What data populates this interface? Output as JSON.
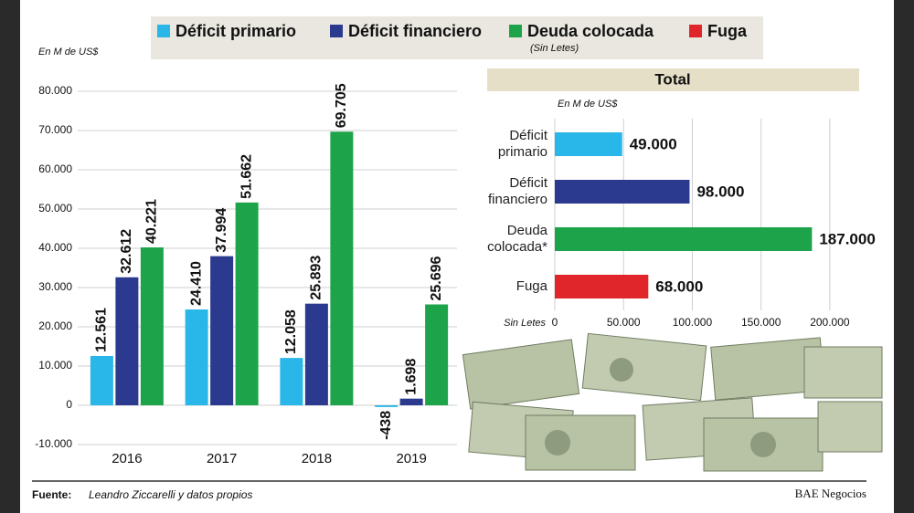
{
  "chart_data": [
    {
      "type": "bar",
      "ylabel": "En M de US$",
      "categories": [
        "2016",
        "2017",
        "2018",
        "2019"
      ],
      "series": [
        {
          "name": "Déficit primario",
          "color": "#29b6e8",
          "values": [
            12561,
            24410,
            12058,
            -438
          ],
          "value_labels": [
            "12.561",
            "24.410",
            "12.058",
            "-438"
          ]
        },
        {
          "name": "Déficit financiero",
          "color": "#2b3a8f",
          "values": [
            32612,
            37994,
            25893,
            1698
          ],
          "value_labels": [
            "32.612",
            "37.994",
            "25.893",
            "1.698"
          ]
        },
        {
          "name": "Deuda colocada",
          "color": "#1da34a",
          "values": [
            40221,
            51662,
            69705,
            25696
          ],
          "value_labels": [
            "40.221",
            "51.662",
            "69.705",
            "25.696"
          ]
        }
      ],
      "ylim": [
        -10000,
        80000
      ],
      "yticks": [
        {
          "value": -10000,
          "label": "-10.000"
        },
        0,
        {
          "value": 10000,
          "label": "10.000"
        },
        {
          "value": 20000,
          "label": "20.000"
        },
        {
          "value": 30000,
          "label": "30.000"
        },
        {
          "value": 40000,
          "label": "40.000"
        },
        {
          "value": 50000,
          "label": "50.000"
        },
        {
          "value": 60000,
          "label": "60.000"
        },
        {
          "value": 70000,
          "label": "70.000"
        },
        {
          "value": 80000,
          "label": "80.000"
        }
      ],
      "grid": true
    },
    {
      "type": "barh",
      "title": "Total",
      "xlabel": "En M de US$",
      "annotation": "Sin Letes",
      "categories": [
        "Déficit\nprimario",
        "Déficit\nfinanciero",
        "Deuda\ncolocada*",
        "Fuga"
      ],
      "values": [
        49000,
        98000,
        187000,
        68000
      ],
      "value_labels": [
        "49.000",
        "98.000",
        "187.000",
        "68.000"
      ],
      "colors": [
        "#29b6e8",
        "#2b3a8f",
        "#1da34a",
        "#e0262b"
      ],
      "xlim": [
        0,
        220000
      ],
      "xticks": [
        0,
        {
          "value": 50000,
          "label": "50.000"
        },
        {
          "value": 100000,
          "label": "100.000"
        },
        {
          "value": 150000,
          "label": "150.000"
        },
        {
          "value": 200000,
          "label": "200.000"
        }
      ],
      "grid": true
    }
  ],
  "legend_extra": {
    "name": "Fuga",
    "color": "#e0262b"
  },
  "legend_note": "(Sin Letes)",
  "source_label": "Fuente:",
  "source": "Leandro Ziccarelli y datos propios",
  "credit": "BAE Negocios"
}
